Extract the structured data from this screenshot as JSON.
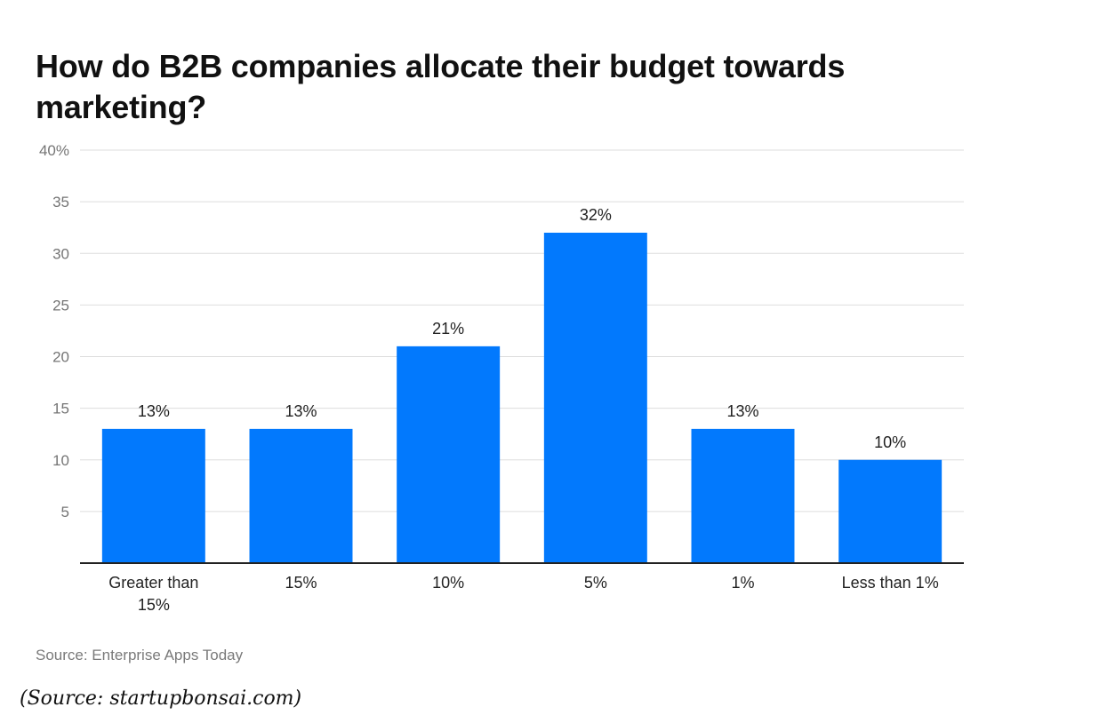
{
  "chart_data": {
    "type": "bar",
    "title": "How do B2B companies allocate their budget towards marketing?",
    "categories": [
      [
        "Greater than",
        "15%"
      ],
      [
        "15%"
      ],
      [
        "10%"
      ],
      [
        "5%"
      ],
      [
        "1%"
      ],
      [
        "Less than 1%"
      ]
    ],
    "values": [
      13,
      13,
      21,
      32,
      13,
      10
    ],
    "data_labels": [
      "13%",
      "13%",
      "21%",
      "32%",
      "13%",
      "10%"
    ],
    "y_ticks": [
      5,
      10,
      15,
      20,
      25,
      30,
      35,
      40
    ],
    "y_tick_labels": [
      "5",
      "10",
      "15",
      "20",
      "25",
      "30",
      "35",
      "40%"
    ],
    "ylim": [
      0,
      40
    ],
    "xlabel": "",
    "ylabel": "",
    "grid": true,
    "bar_color": "#0279fd",
    "grid_color": "#dddddd",
    "axis_color": "#222222"
  },
  "source_note": "Source: Enterprise Apps Today",
  "page_credit": "(Source: startupbonsai.com)"
}
